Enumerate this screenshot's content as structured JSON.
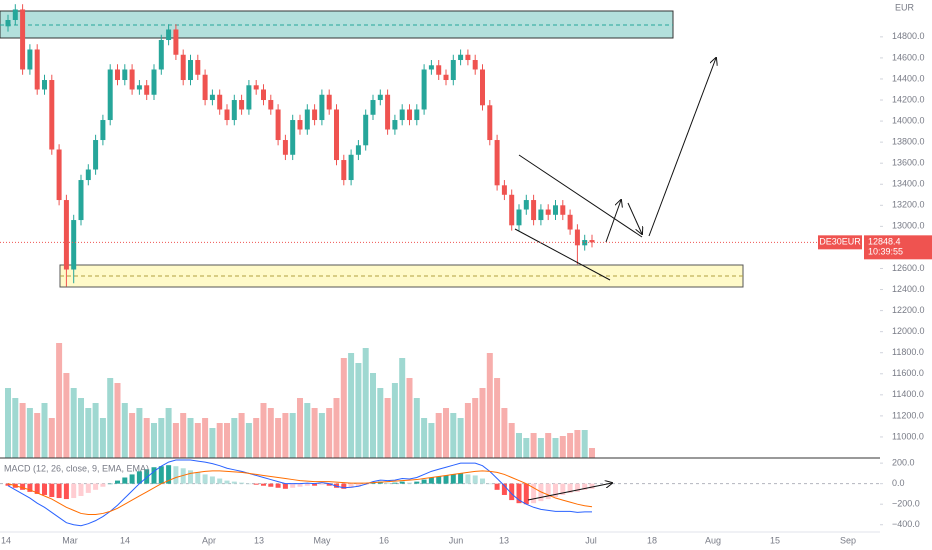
{
  "chart_data": {
    "type": "candlestick",
    "currency": "EUR",
    "symbol": "DE30EUR",
    "countdown": "10:39:55",
    "up_color": "#26a69a",
    "down_color": "#ef5350",
    "ylim": [
      10800,
      15150
    ],
    "yticks": [
      {
        "value": 11000,
        "label": "11000.0"
      },
      {
        "value": 11200,
        "label": "11200.0"
      },
      {
        "value": 11400,
        "label": "11400.0"
      },
      {
        "value": 11600,
        "label": "11600.0"
      },
      {
        "value": 11800,
        "label": "11800.0"
      },
      {
        "value": 12000,
        "label": "12000.0"
      },
      {
        "value": 12200,
        "label": "12200.0"
      },
      {
        "value": 12400,
        "label": "12400.0"
      },
      {
        "value": 12600,
        "label": "12600.0"
      },
      {
        "value": 12800,
        "label": "12800.0"
      },
      {
        "value": 13000,
        "label": "13000.0"
      },
      {
        "value": 13200,
        "label": "13200.0"
      },
      {
        "value": 13400,
        "label": "13400.0"
      },
      {
        "value": 13600,
        "label": "13600.0"
      },
      {
        "value": 13800,
        "label": "13800.0"
      },
      {
        "value": 14000,
        "label": "14000.0"
      },
      {
        "value": 14200,
        "label": "14200.0"
      },
      {
        "value": 14400,
        "label": "14400.0"
      },
      {
        "value": 14600,
        "label": "14600.0"
      },
      {
        "value": 14800,
        "label": "14800.0"
      }
    ],
    "open": [
      14900,
      14960,
      15060,
      14490,
      14680,
      14300,
      14390,
      13730,
      13250,
      12590,
      13060,
      13440,
      13540,
      13820,
      14010,
      14490,
      14390,
      14490,
      14300,
      14340,
      14250,
      14490,
      14770,
      14870,
      14630,
      14390,
      14580,
      14440,
      14200,
      14250,
      14110,
      14010,
      14200,
      14110,
      14340,
      14300,
      14200,
      14110,
      13820,
      13680,
      14010,
      13920,
      14110,
      14010,
      14250,
      14110,
      13630,
      13440,
      13680,
      13770,
      14060,
      14200,
      14250,
      13920,
      14010,
      14110,
      14010,
      14110,
      14490,
      14530,
      14440,
      14390,
      14580,
      14630,
      14580,
      14490,
      14150,
      13820,
      13390,
      13300,
      13010,
      13160,
      13250,
      13060,
      13160,
      13110,
      13200,
      13110,
      12970,
      12820,
      12870
    ],
    "high": [
      15010,
      15110,
      15110,
      14730,
      14730,
      14440,
      14440,
      13780,
      13300,
      13110,
      13490,
      13590,
      13870,
      14060,
      14540,
      14540,
      14540,
      14540,
      14390,
      14390,
      14540,
      14820,
      14920,
      14920,
      14680,
      14630,
      14630,
      14490,
      14300,
      14300,
      14160,
      14250,
      14250,
      14390,
      14390,
      14350,
      14250,
      14160,
      13870,
      14060,
      14060,
      14160,
      14160,
      14300,
      14300,
      14160,
      13680,
      13730,
      13820,
      14110,
      14250,
      14300,
      14300,
      14060,
      14160,
      14160,
      14160,
      14540,
      14580,
      14580,
      14490,
      14630,
      14680,
      14680,
      14630,
      14540,
      14200,
      13870,
      13440,
      13350,
      13210,
      13300,
      13300,
      13210,
      13210,
      13250,
      13250,
      13160,
      13020,
      12920,
      12920
    ],
    "low": [
      14850,
      14910,
      14440,
      14440,
      14250,
      14250,
      13680,
      13200,
      12430,
      12460,
      13010,
      13390,
      13490,
      13770,
      13960,
      14340,
      14340,
      14250,
      14250,
      14200,
      14200,
      14440,
      14720,
      14580,
      14340,
      14340,
      14390,
      14150,
      14150,
      14060,
      13960,
      13960,
      14060,
      14060,
      14250,
      14150,
      14060,
      13770,
      13630,
      13630,
      13870,
      13870,
      13960,
      13960,
      14060,
      13580,
      13390,
      13390,
      13630,
      13720,
      14010,
      14150,
      13870,
      13870,
      13960,
      13960,
      13960,
      14060,
      14440,
      14390,
      14340,
      14340,
      14530,
      14530,
      14440,
      14100,
      13770,
      13340,
      13250,
      12960,
      12960,
      13110,
      13010,
      13010,
      13060,
      13060,
      13060,
      12920,
      12640,
      12770,
      12800
    ],
    "close": [
      14960,
      15060,
      14490,
      14680,
      14300,
      14390,
      13730,
      13250,
      12590,
      13060,
      13440,
      13540,
      13820,
      14010,
      14490,
      14390,
      14490,
      14300,
      14340,
      14250,
      14490,
      14770,
      14870,
      14630,
      14390,
      14580,
      14440,
      14200,
      14250,
      14110,
      14010,
      14200,
      14110,
      14340,
      14300,
      14200,
      14110,
      13820,
      13680,
      14010,
      13920,
      14110,
      14010,
      14250,
      14110,
      13630,
      13440,
      13680,
      13770,
      14060,
      14200,
      14250,
      13920,
      14010,
      14110,
      14010,
      14110,
      14490,
      14530,
      14440,
      14390,
      14580,
      14630,
      14580,
      14490,
      14150,
      13820,
      13390,
      13300,
      13010,
      13160,
      13250,
      13060,
      13160,
      13110,
      13200,
      13110,
      12970,
      12820,
      12870,
      12848.4
    ],
    "volume": {
      "ylim": [
        0,
        458
      ],
      "values": [
        70,
        60,
        55,
        50,
        45,
        55,
        40,
        115,
        85,
        70,
        60,
        50,
        55,
        40,
        80,
        75,
        55,
        45,
        50,
        40,
        35,
        40,
        50,
        35,
        45,
        40,
        35,
        40,
        30,
        35,
        35,
        40,
        45,
        35,
        40,
        55,
        50,
        40,
        45,
        45,
        60,
        55,
        50,
        45,
        50,
        60,
        100,
        105,
        95,
        110,
        85,
        70,
        60,
        75,
        100,
        80,
        60,
        40,
        35,
        45,
        50,
        45,
        40,
        55,
        60,
        70,
        105,
        80,
        50,
        35,
        25,
        20,
        25,
        20,
        25,
        20,
        22,
        25,
        28,
        28,
        10
      ]
    },
    "macd": {
      "title": "MACD (12, 26, close, 9, EMA, EMA)",
      "ylim": [
        -500,
        250
      ],
      "yticks": [
        {
          "value": 200,
          "label": "200.0"
        },
        {
          "value": 0,
          "label": "0.0"
        },
        {
          "value": -200,
          "label": "−200.0"
        },
        {
          "value": -400,
          "label": "−400.0"
        }
      ],
      "histogram": [
        -20,
        -40,
        -60,
        -80,
        -100,
        -110,
        -130,
        -140,
        -150,
        -140,
        -120,
        -90,
        -60,
        -30,
        0,
        30,
        60,
        90,
        120,
        140,
        160,
        170,
        180,
        170,
        150,
        130,
        110,
        90,
        70,
        50,
        30,
        20,
        10,
        0,
        -10,
        -20,
        -30,
        -40,
        -50,
        -40,
        -30,
        -20,
        -20,
        -10,
        -20,
        -40,
        -50,
        -40,
        -30,
        -10,
        10,
        20,
        10,
        10,
        20,
        10,
        20,
        40,
        60,
        70,
        80,
        90,
        100,
        90,
        80,
        50,
        0,
        -60,
        -110,
        -160,
        -190,
        -200,
        -190,
        -170,
        -150,
        -130,
        -110,
        -90,
        -80,
        -60,
        -50
      ],
      "macd_line": {
        "color": "#2962ff",
        "values": [
          -20,
          -60,
          -100,
          -140,
          -190,
          -230,
          -280,
          -330,
          -380,
          -400,
          -410,
          -390,
          -360,
          -320,
          -270,
          -210,
          -140,
          -70,
          0,
          60,
          120,
          170,
          210,
          230,
          230,
          230,
          220,
          210,
          195,
          175,
          150,
          135,
          120,
          100,
          80,
          60,
          40,
          20,
          0,
          0,
          0,
          5,
          0,
          10,
          0,
          -25,
          -40,
          -35,
          -25,
          -5,
          20,
          35,
          30,
          35,
          50,
          45,
          60,
          90,
          120,
          140,
          160,
          180,
          200,
          200,
          200,
          175,
          120,
          50,
          -20,
          -100,
          -160,
          -200,
          -230,
          -250,
          -260,
          -270,
          -270,
          -270,
          -280,
          -275,
          -275
        ]
      },
      "signal_line": {
        "color": "#ff6d00",
        "values": [
          0,
          -20,
          -40,
          -60,
          -90,
          -120,
          -150,
          -190,
          -230,
          -260,
          -290,
          -300,
          -300,
          -290,
          -270,
          -240,
          -200,
          -160,
          -120,
          -80,
          -40,
          0,
          30,
          60,
          80,
          100,
          110,
          120,
          125,
          125,
          120,
          115,
          110,
          100,
          90,
          80,
          70,
          60,
          50,
          40,
          30,
          25,
          20,
          20,
          20,
          15,
          10,
          5,
          5,
          5,
          10,
          15,
          20,
          25,
          30,
          35,
          40,
          50,
          60,
          70,
          80,
          90,
          100,
          110,
          120,
          125,
          120,
          110,
          90,
          60,
          30,
          0,
          -40,
          -80,
          -110,
          -140,
          -160,
          -180,
          -200,
          -215,
          -225
        ]
      }
    },
    "x_labels": [
      "14",
      "Mar",
      "14",
      "Apr",
      "13",
      "May",
      "16",
      "Jun",
      "13",
      "Jul",
      "18",
      "Aug",
      "15",
      "Sep"
    ]
  }
}
